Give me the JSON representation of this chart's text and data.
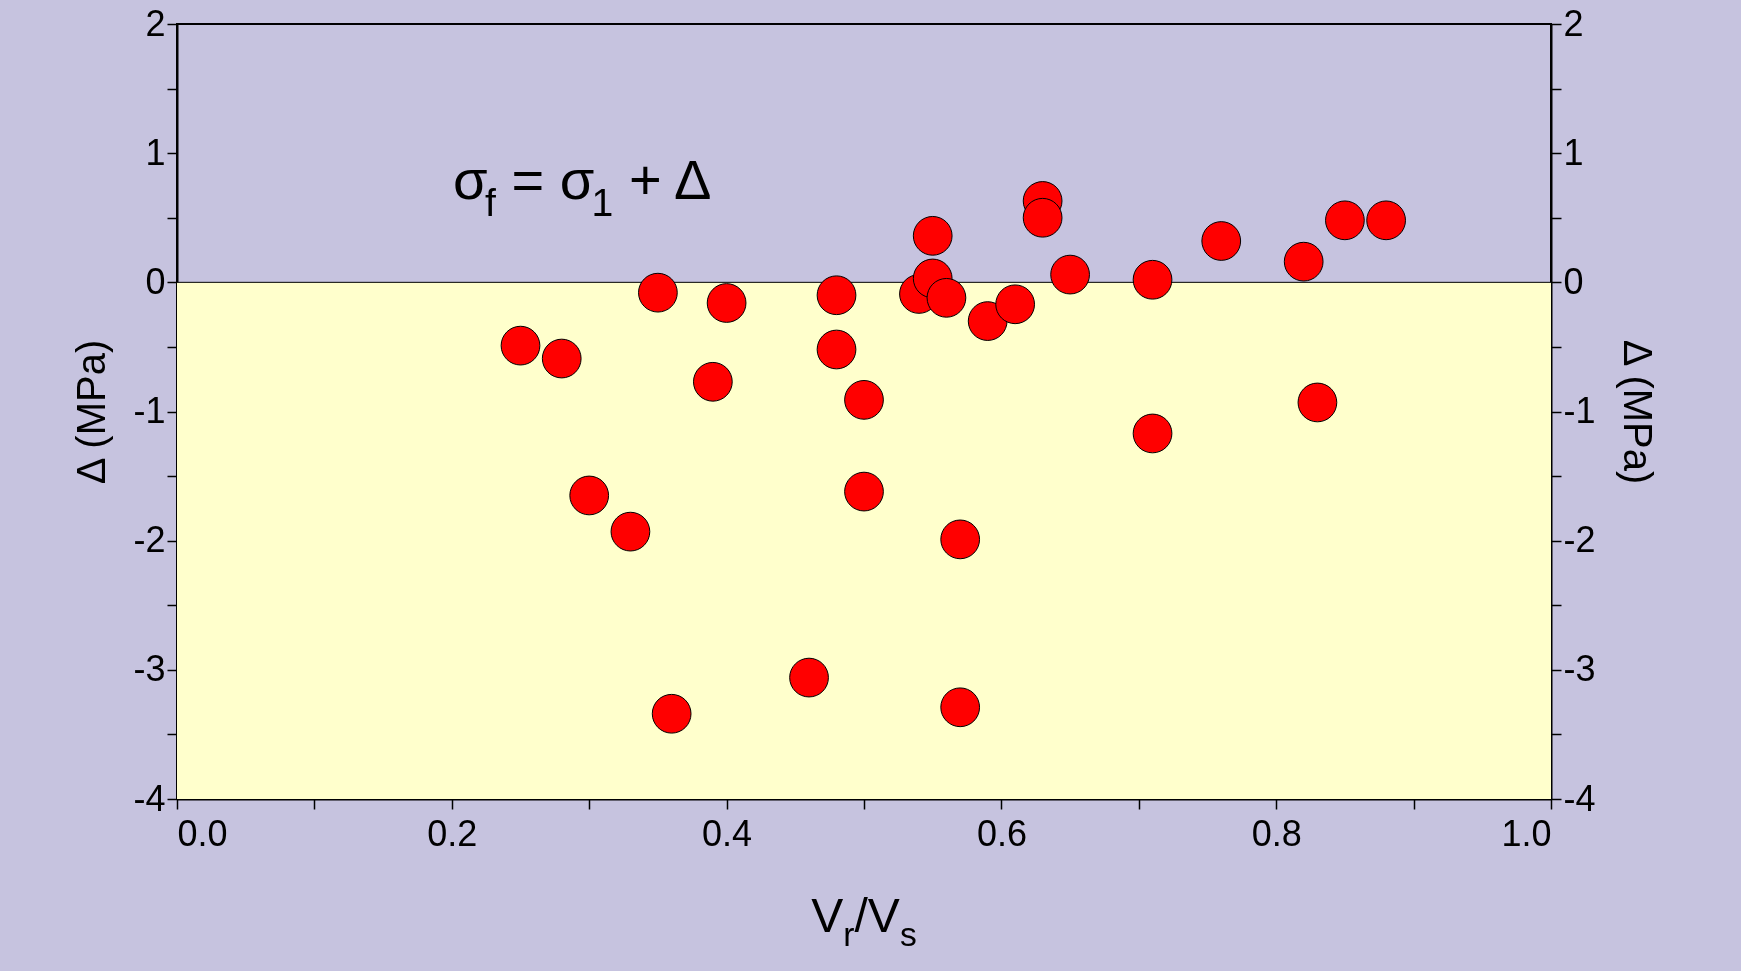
{
  "chart_data": {
    "type": "scatter",
    "xlabel": "V$_{r}$/V$_{s}$",
    "ylabel": "Δ (MPa)",
    "y2label": "Δ (MPa)",
    "annotations": [
      "σ$_{f}$ = σ$_{1}$ +  Δ"
    ],
    "x": [
      0.25,
      0.28,
      0.3,
      0.33,
      0.35,
      0.36,
      0.39,
      0.4,
      0.46,
      0.48,
      0.48,
      0.5,
      0.5,
      0.54,
      0.55,
      0.55,
      0.56,
      0.57,
      0.57,
      0.59,
      0.61,
      0.63,
      0.63,
      0.65,
      0.71,
      0.71,
      0.76,
      0.82,
      0.83,
      0.85,
      0.88
    ],
    "series": [
      {
        "color": "#ff0000",
        "values": [
          -0.49,
          -0.59,
          -1.65,
          -1.93,
          -0.08,
          -3.34,
          -0.77,
          -0.16,
          -3.06,
          -0.1,
          -0.52,
          -0.91,
          -1.62,
          -0.09,
          0.03,
          0.36,
          -0.12,
          -1.99,
          -3.29,
          -0.3,
          -0.17,
          0.63,
          0.5,
          0.06,
          0.02,
          -1.17,
          0.32,
          0.16,
          -0.93,
          0.48,
          0.48
        ]
      }
    ],
    "marker": "circle",
    "xlim": [
      0,
      1
    ],
    "ylim": [
      -4,
      2
    ],
    "y2lim": [
      -4,
      2
    ],
    "xticks": [
      {
        "value": 0,
        "label": "0.0"
      },
      {
        "value": 0.1,
        "label": null
      },
      {
        "value": 0.2,
        "label": "0.2"
      },
      {
        "value": 0.3,
        "label": null
      },
      {
        "value": 0.4,
        "label": "0.4"
      },
      {
        "value": 0.5,
        "label": null
      },
      {
        "value": 0.6,
        "label": "0.6"
      },
      {
        "value": 0.7,
        "label": null
      },
      {
        "value": 0.8,
        "label": "0.8"
      },
      {
        "value": 0.9,
        "label": null
      },
      {
        "value": 1,
        "label": "1.0"
      }
    ],
    "yticks": [
      -4,
      {
        "value": -3.5,
        "label": null
      },
      -3,
      {
        "value": -2.5,
        "label": null
      },
      -2,
      {
        "value": -1.5,
        "label": null
      },
      -1,
      {
        "value": -0.5,
        "label": null
      },
      0,
      {
        "value": 0.5,
        "label": null
      },
      1,
      {
        "value": 1.5,
        "label": null
      },
      2
    ],
    "y2ticks": [
      -4,
      {
        "value": -3.5,
        "label": null
      },
      -3,
      {
        "value": -2.5,
        "label": null
      },
      -2,
      {
        "value": -1.5,
        "label": null
      },
      -1,
      {
        "value": -0.5,
        "label": null
      },
      0,
      {
        "value": 0.5,
        "label": null
      },
      1,
      {
        "value": 1.5,
        "label": null
      },
      2
    ],
    "bands": [
      {
        "axis": "y",
        "from": -4,
        "to": 0,
        "color": "#ffffcc"
      }
    ],
    "ref_lines": [
      {
        "axis": "y",
        "value": 0,
        "color": "#000000"
      }
    ],
    "grid": false
  }
}
